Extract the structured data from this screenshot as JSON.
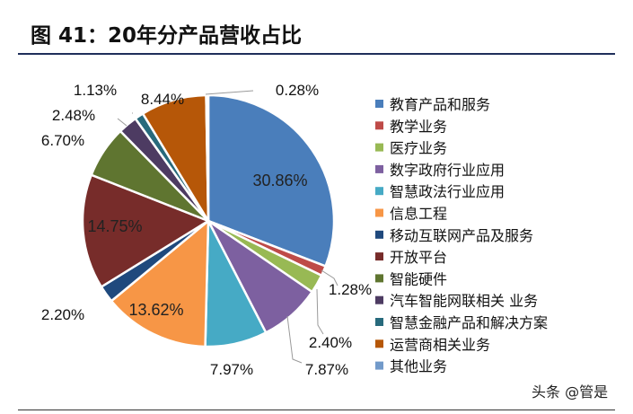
{
  "figure": {
    "title": "图 41：20年分产品营收占比",
    "watermark": "头条 @管是"
  },
  "chart_data": {
    "type": "pie",
    "title": "图 41：20年分产品营收占比",
    "series": [
      {
        "name": "教育产品和服务",
        "value": 30.86,
        "label": "30.86%",
        "color": "#4a7ebb"
      },
      {
        "name": "教学业务",
        "value": 1.28,
        "label": "1.28%",
        "color": "#be4b48"
      },
      {
        "name": "医疗业务",
        "value": 2.4,
        "label": "2.40%",
        "color": "#98b954"
      },
      {
        "name": "数字政府行业应用",
        "value": 7.87,
        "label": "7.87%",
        "color": "#7d60a0"
      },
      {
        "name": "智慧政法行业应用",
        "value": 7.97,
        "label": "7.97%",
        "color": "#46aac5"
      },
      {
        "name": "信息工程",
        "value": 13.62,
        "label": "13.62%",
        "color": "#f79646"
      },
      {
        "name": "移动互联网产品及服务",
        "value": 2.2,
        "label": "2.20%",
        "color": "#1f497d"
      },
      {
        "name": "开放平台",
        "value": 14.75,
        "label": "14.75%",
        "color": "#772c2a"
      },
      {
        "name": "智能硬件",
        "value": 6.7,
        "label": "6.70%",
        "color": "#5f7530"
      },
      {
        "name": "汽车智能网联相关 业务",
        "value": 2.48,
        "label": "2.48%",
        "color": "#4d3b62"
      },
      {
        "name": "智慧金融产品和解决方案",
        "value": 1.13,
        "label": "1.13%",
        "color": "#276a7c"
      },
      {
        "name": "运营商相关业务",
        "value": 8.44,
        "label": "8.44%",
        "color": "#b65708"
      },
      {
        "name": "其他业务",
        "value": 0.28,
        "label": "0.28%",
        "color": "#729aca"
      }
    ],
    "legend_position": "right"
  }
}
